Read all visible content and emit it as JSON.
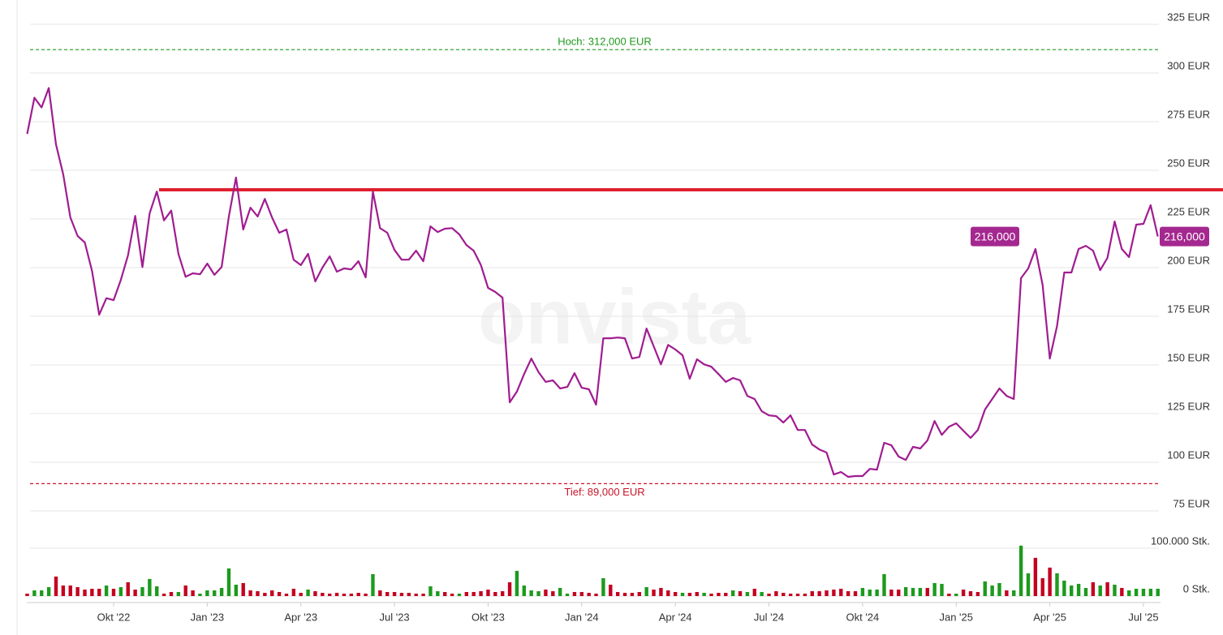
{
  "chart_data": {
    "type": "line",
    "watermark": "onvista",
    "grid": true,
    "categories": [
      null,
      null,
      null,
      null,
      null,
      null,
      null,
      null,
      null,
      null,
      null,
      null,
      "Okt '22",
      null,
      null,
      null,
      null,
      null,
      null,
      null,
      null,
      null,
      null,
      null,
      null,
      "Jan '23",
      null,
      null,
      null,
      null,
      null,
      null,
      null,
      null,
      null,
      null,
      null,
      null,
      "Apr '23",
      null,
      null,
      null,
      null,
      null,
      null,
      null,
      null,
      null,
      null,
      null,
      null,
      "Jul '23",
      null,
      null,
      null,
      null,
      null,
      null,
      null,
      null,
      null,
      null,
      null,
      null,
      "Okt '23",
      null,
      null,
      null,
      null,
      null,
      null,
      null,
      null,
      null,
      null,
      null,
      null,
      "Jan '24",
      null,
      null,
      null,
      null,
      null,
      null,
      null,
      null,
      null,
      null,
      null,
      null,
      "Apr '24",
      null,
      null,
      null,
      null,
      null,
      null,
      null,
      null,
      null,
      null,
      null,
      null,
      "Jul '24",
      null,
      null,
      null,
      null,
      null,
      null,
      null,
      null,
      null,
      null,
      null,
      null,
      "Okt '24",
      null,
      null,
      null,
      null,
      null,
      null,
      null,
      null,
      null,
      null,
      null,
      null,
      "Jan '25",
      null,
      null,
      null,
      null,
      null,
      null,
      null,
      null,
      null,
      null,
      null,
      null,
      "Apr '25",
      null,
      null,
      null,
      null,
      null,
      null,
      null,
      null,
      null,
      null,
      null,
      null,
      "Jul '25",
      null,
      null
    ],
    "series": [
      {
        "color": "#a01c90",
        "values": [
          268.7,
          287.3,
          282.3,
          292.3,
          263.3,
          247.9,
          225.8,
          216.3,
          212.9,
          198.3,
          175.8,
          184.3,
          183.3,
          193.7,
          206.3,
          226.6,
          200.3,
          227.9,
          239.1,
          224.3,
          229.3,
          207.0,
          195.3,
          197.1,
          196.6,
          202.1,
          196.3,
          200.3,
          226.3,
          246.3,
          219.6,
          230.8,
          226.3,
          235.3,
          225.8,
          217.9,
          219.6,
          204.1,
          201.3,
          207.1,
          192.9,
          200.0,
          205.8,
          197.9,
          199.6,
          199.1,
          203.3,
          195.0,
          239.1,
          220.3,
          217.9,
          209.1,
          204.1,
          204.1,
          208.7,
          203.3,
          221.2,
          218.3,
          220.0,
          220.3,
          217.1,
          211.6,
          208.7,
          201.3,
          189.6,
          187.5,
          184.6,
          130.8,
          136.3,
          145.3,
          153.3,
          146.3,
          141.3,
          142.1,
          137.9,
          138.7,
          145.8,
          138.3,
          137.5,
          129.6,
          163.7,
          163.7,
          164.1,
          163.7,
          153.3,
          154.1,
          168.7,
          159.6,
          150.3,
          160.3,
          157.9,
          155.0,
          142.9,
          152.9,
          150.3,
          149.1,
          145.3,
          141.3,
          143.3,
          142.1,
          134.1,
          132.5,
          126.2,
          124.1,
          123.7,
          120.4,
          124.1,
          116.6,
          116.6,
          109.1,
          106.6,
          105.0,
          93.7,
          95.0,
          92.5,
          92.9,
          92.9,
          96.6,
          96.2,
          110.0,
          108.7,
          102.9,
          101.2,
          107.9,
          107.1,
          111.2,
          121.2,
          114.1,
          118.3,
          120.0,
          116.2,
          112.5,
          116.6,
          127.1,
          132.5,
          137.9,
          134.1,
          132.5,
          194.6,
          199.6,
          209.6,
          191.2,
          153.3,
          170.0,
          197.5,
          197.5,
          209.6,
          211.2,
          208.7,
          198.7,
          205.0,
          223.7,
          209.6,
          205.4,
          222.1,
          222.5,
          232.1,
          216
        ]
      }
    ],
    "ylim": [
      75,
      325
    ],
    "yticks": [
      {
        "value": 75,
        "label": "75 EUR"
      },
      {
        "value": 100,
        "label": "100 EUR"
      },
      {
        "value": 125,
        "label": "125 EUR"
      },
      {
        "value": 150,
        "label": "150 EUR"
      },
      {
        "value": 175,
        "label": "175 EUR"
      },
      {
        "value": 200,
        "label": "200 EUR"
      },
      {
        "value": 225,
        "label": "225 EUR"
      },
      {
        "value": 250,
        "label": "250 EUR"
      },
      {
        "value": 275,
        "label": "275 EUR"
      },
      {
        "value": 300,
        "label": "300 EUR"
      },
      {
        "value": 325,
        "label": "325 EUR"
      }
    ],
    "high": {
      "value": 312,
      "label": "Hoch: 312,000 EUR",
      "color": "#1e9a1e"
    },
    "low": {
      "value": 89,
      "label": "Tief: 89,000 EUR",
      "color": "#c81428"
    },
    "resistance": {
      "value": 240,
      "color": "#e0202e"
    },
    "last": {
      "value": 216,
      "label": "216,000",
      "color": "#a4288f"
    },
    "volume": {
      "values": [
        5100,
        11900,
        11900,
        18700,
        40800,
        22100,
        22100,
        18700,
        13600,
        15300,
        15300,
        22100,
        15300,
        18700,
        28900,
        13600,
        18700,
        35700,
        20400,
        5100,
        8500,
        8500,
        22100,
        11900,
        5100,
        11900,
        11900,
        17000,
        57800,
        23800,
        27200,
        11900,
        10200,
        6800,
        11900,
        8500,
        5100,
        15300,
        6800,
        13600,
        10200,
        6800,
        5100,
        6800,
        5100,
        5100,
        6800,
        5100,
        45900,
        11900,
        8500,
        8500,
        6800,
        6800,
        5100,
        5100,
        20400,
        10200,
        8500,
        5100,
        5100,
        8500,
        8500,
        10200,
        13600,
        8500,
        10200,
        28900,
        52700,
        22100,
        11900,
        10200,
        13600,
        10200,
        17000,
        5100,
        8500,
        8500,
        6800,
        5100,
        37400,
        23800,
        8500,
        6800,
        6800,
        8500,
        18700,
        13600,
        17000,
        11900,
        8500,
        6800,
        6800,
        8500,
        6800,
        5100,
        6800,
        6800,
        11900,
        10200,
        8500,
        15300,
        8500,
        5100,
        10200,
        6800,
        5100,
        5100,
        5100,
        10200,
        10200,
        11900,
        13600,
        15300,
        10200,
        10200,
        17000,
        13600,
        13600,
        45900,
        13600,
        13600,
        18700,
        17000,
        17000,
        17000,
        27200,
        25500,
        5100,
        5100,
        13600,
        10200,
        8500,
        30600,
        22100,
        27200,
        11900,
        11900,
        105400,
        47600,
        79900,
        37400,
        59500,
        47600,
        32300,
        22100,
        25500,
        17000,
        28900,
        22100,
        28900,
        23800,
        17000,
        11900,
        15300,
        15300,
        15300,
        15300
      ],
      "up": [
        false,
        true,
        true,
        true,
        false,
        false,
        false,
        false,
        false,
        false,
        false,
        true,
        false,
        true,
        false,
        false,
        true,
        true,
        true,
        false,
        false,
        true,
        false,
        false,
        true,
        true,
        true,
        true,
        true,
        true,
        false,
        false,
        false,
        false,
        false,
        false,
        false,
        false,
        false,
        true,
        false,
        false,
        false,
        false,
        false,
        false,
        false,
        false,
        true,
        false,
        false,
        false,
        false,
        false,
        false,
        false,
        true,
        true,
        false,
        false,
        true,
        false,
        false,
        false,
        false,
        false,
        false,
        false,
        true,
        true,
        true,
        true,
        false,
        false,
        true,
        true,
        false,
        false,
        false,
        false,
        true,
        false,
        false,
        false,
        false,
        false,
        true,
        false,
        false,
        false,
        false,
        true,
        false,
        false,
        true,
        false,
        false,
        false,
        true,
        false,
        true,
        false,
        true,
        false,
        false,
        false,
        false,
        false,
        false,
        false,
        false,
        false,
        false,
        false,
        false,
        false,
        true,
        true,
        true,
        true,
        false,
        false,
        true,
        true,
        true,
        false,
        true,
        true,
        false,
        true,
        false,
        false,
        false,
        true,
        true,
        true,
        false,
        true,
        true,
        true,
        false,
        false,
        false,
        true,
        true,
        true,
        true,
        true,
        false,
        true,
        false,
        true,
        false,
        true,
        true,
        true,
        true,
        true
      ],
      "up_color": "#1d9a1d",
      "down_color": "#c40020",
      "ylim": [
        0,
        100000
      ],
      "yticks": [
        {
          "value": 0,
          "label": "0 Stk."
        },
        {
          "value": 100000,
          "label": "100.000 Stk."
        }
      ]
    }
  }
}
